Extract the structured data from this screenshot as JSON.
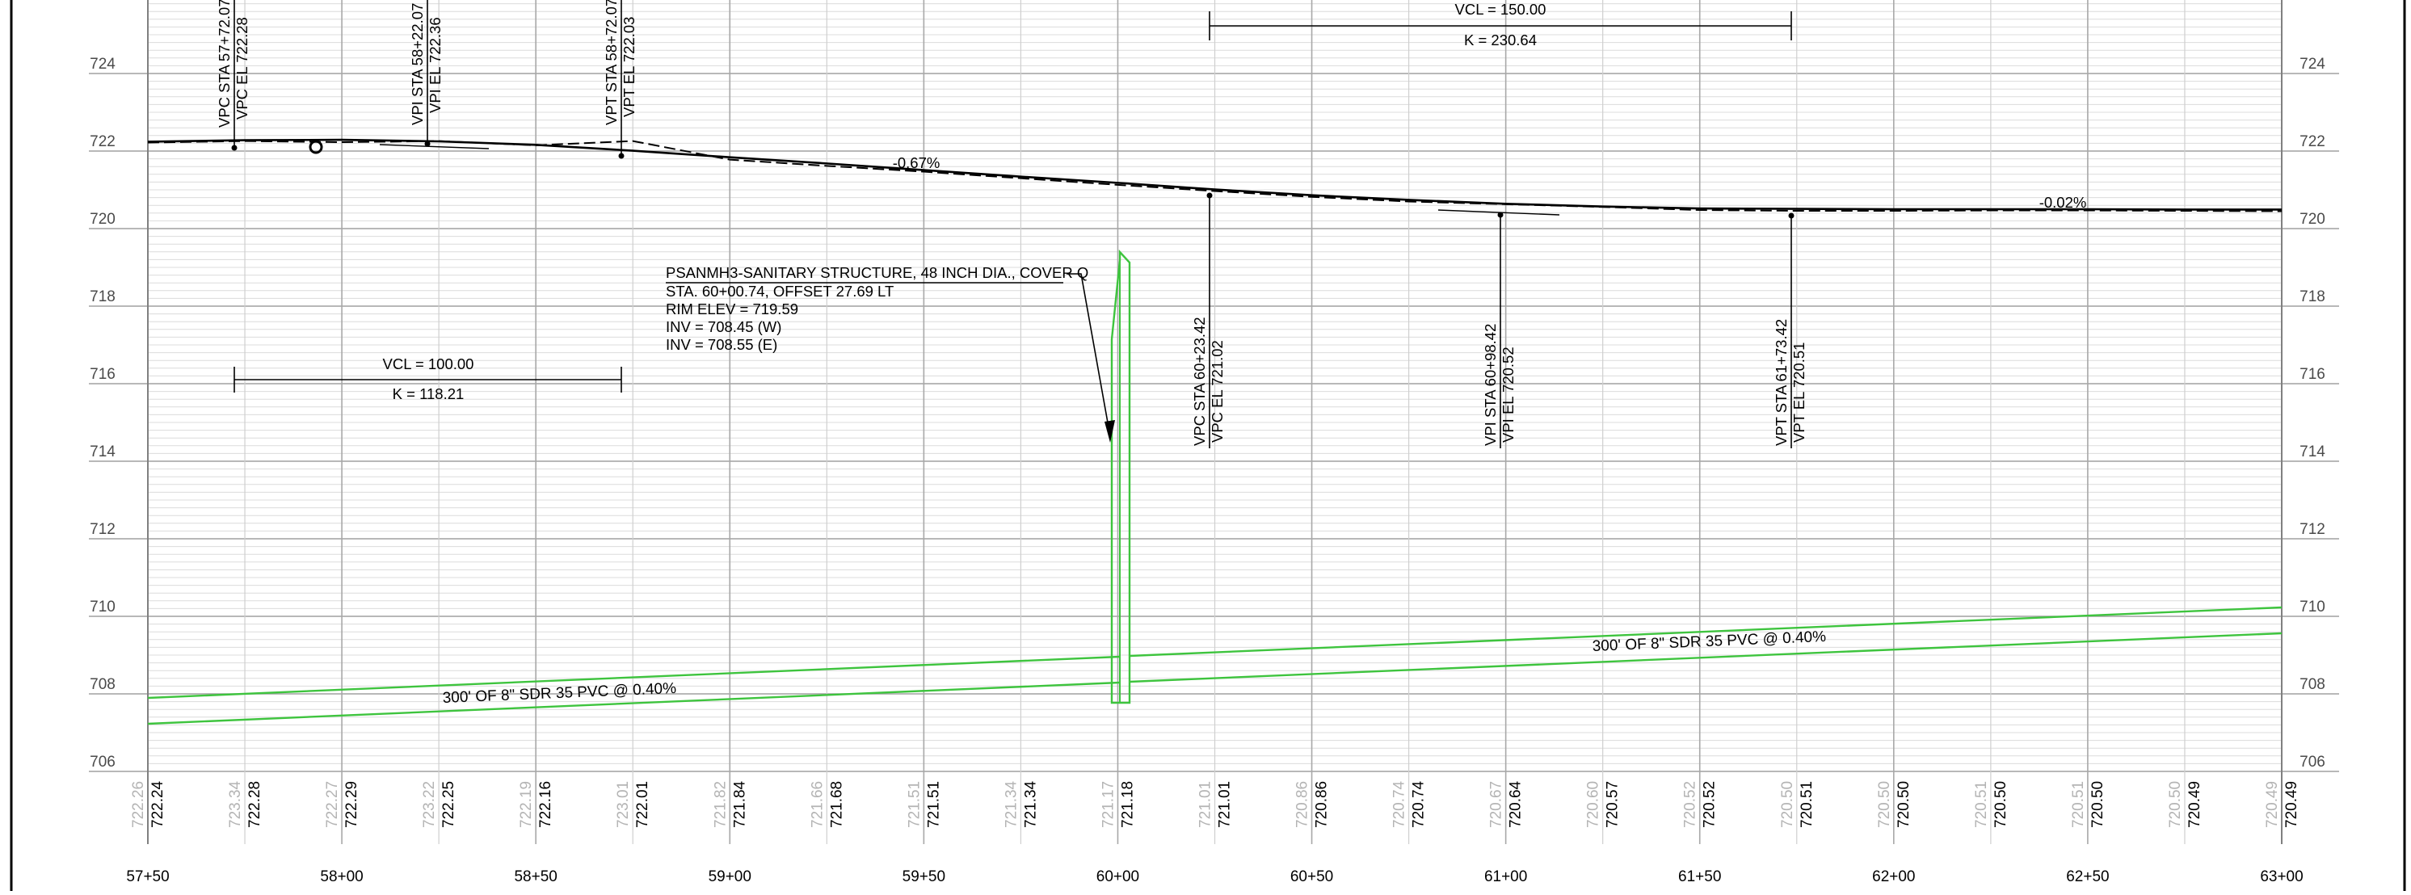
{
  "profile": {
    "elevation_ticks": [
      "724",
      "722",
      "720",
      "718",
      "716",
      "714",
      "712",
      "710",
      "708",
      "706"
    ],
    "elevation_values": [
      724,
      722,
      720,
      718,
      716,
      714,
      712,
      710,
      708,
      706
    ],
    "station_ticks": [
      "57+50",
      "58+00",
      "58+50",
      "59+00",
      "59+50",
      "60+00",
      "60+50",
      "61+00",
      "61+50",
      "62+00",
      "62+50",
      "63+00"
    ],
    "existing_elevations": [
      "722.26",
      "723.34",
      "722.27",
      "723.22",
      "722.19",
      "723.01",
      "721.82",
      "721.66",
      "721.51",
      "721.34",
      "721.17",
      "721.01",
      "720.86",
      "720.74",
      "720.67",
      "720.60",
      "720.52",
      "720.50",
      "720.50",
      "720.51",
      "720.51",
      "720.50",
      "720.49"
    ],
    "proposed_elevations": [
      "722.24",
      "722.28",
      "722.29",
      "722.25",
      "722.16",
      "722.01",
      "721.84",
      "721.68",
      "721.51",
      "721.34",
      "721.18",
      "721.01",
      "720.86",
      "720.74",
      "720.64",
      "720.57",
      "720.52",
      "720.51",
      "720.50",
      "720.50",
      "720.50",
      "720.49",
      "720.49"
    ]
  },
  "curve1": {
    "vpc_sta": "VPC STA 57+72.07",
    "vpc_el": "VPC EL 722.28",
    "vpi_sta": "VPI STA 58+22.07",
    "vpi_el": "VPI EL 722.36",
    "vpt_sta": "VPT STA 58+72.07",
    "vpt_el": "VPT EL 722.03",
    "vcl": "VCL = 100.00",
    "k": "K = 118.21"
  },
  "curve2": {
    "vpc_sta": "VPC STA 60+23.42",
    "vpc_el": "VPC EL 721.02",
    "vpi_sta": "VPI STA 60+98.42",
    "vpi_el": "VPI EL 720.52",
    "vpt_sta": "VPT STA 61+73.42",
    "vpt_el": "VPT EL 720.51",
    "vcl": "VCL = 150.00",
    "k": "K = 230.64"
  },
  "grades": {
    "grade1": "-0.67%",
    "grade2": "-0.02%"
  },
  "structure": {
    "line1": "PSANMH3-SANITARY STRUCTURE, 48 INCH DIA., COVER Q",
    "line2": "STA. 60+00.74, OFFSET 27.69 LT",
    "line3": "RIM ELEV = 719.59",
    "line4": "INV = 708.45 (W)",
    "line5": "INV = 708.55 (E)"
  },
  "pipes": {
    "west": "300' OF 8\" SDR 35 PVC @ 0.40%",
    "east": "300' OF 8\" SDR 35 PVC @ 0.40%"
  },
  "colors": {
    "pipe": "#3ec43e",
    "grid": "#c8c8c8",
    "profile": "#000000"
  }
}
